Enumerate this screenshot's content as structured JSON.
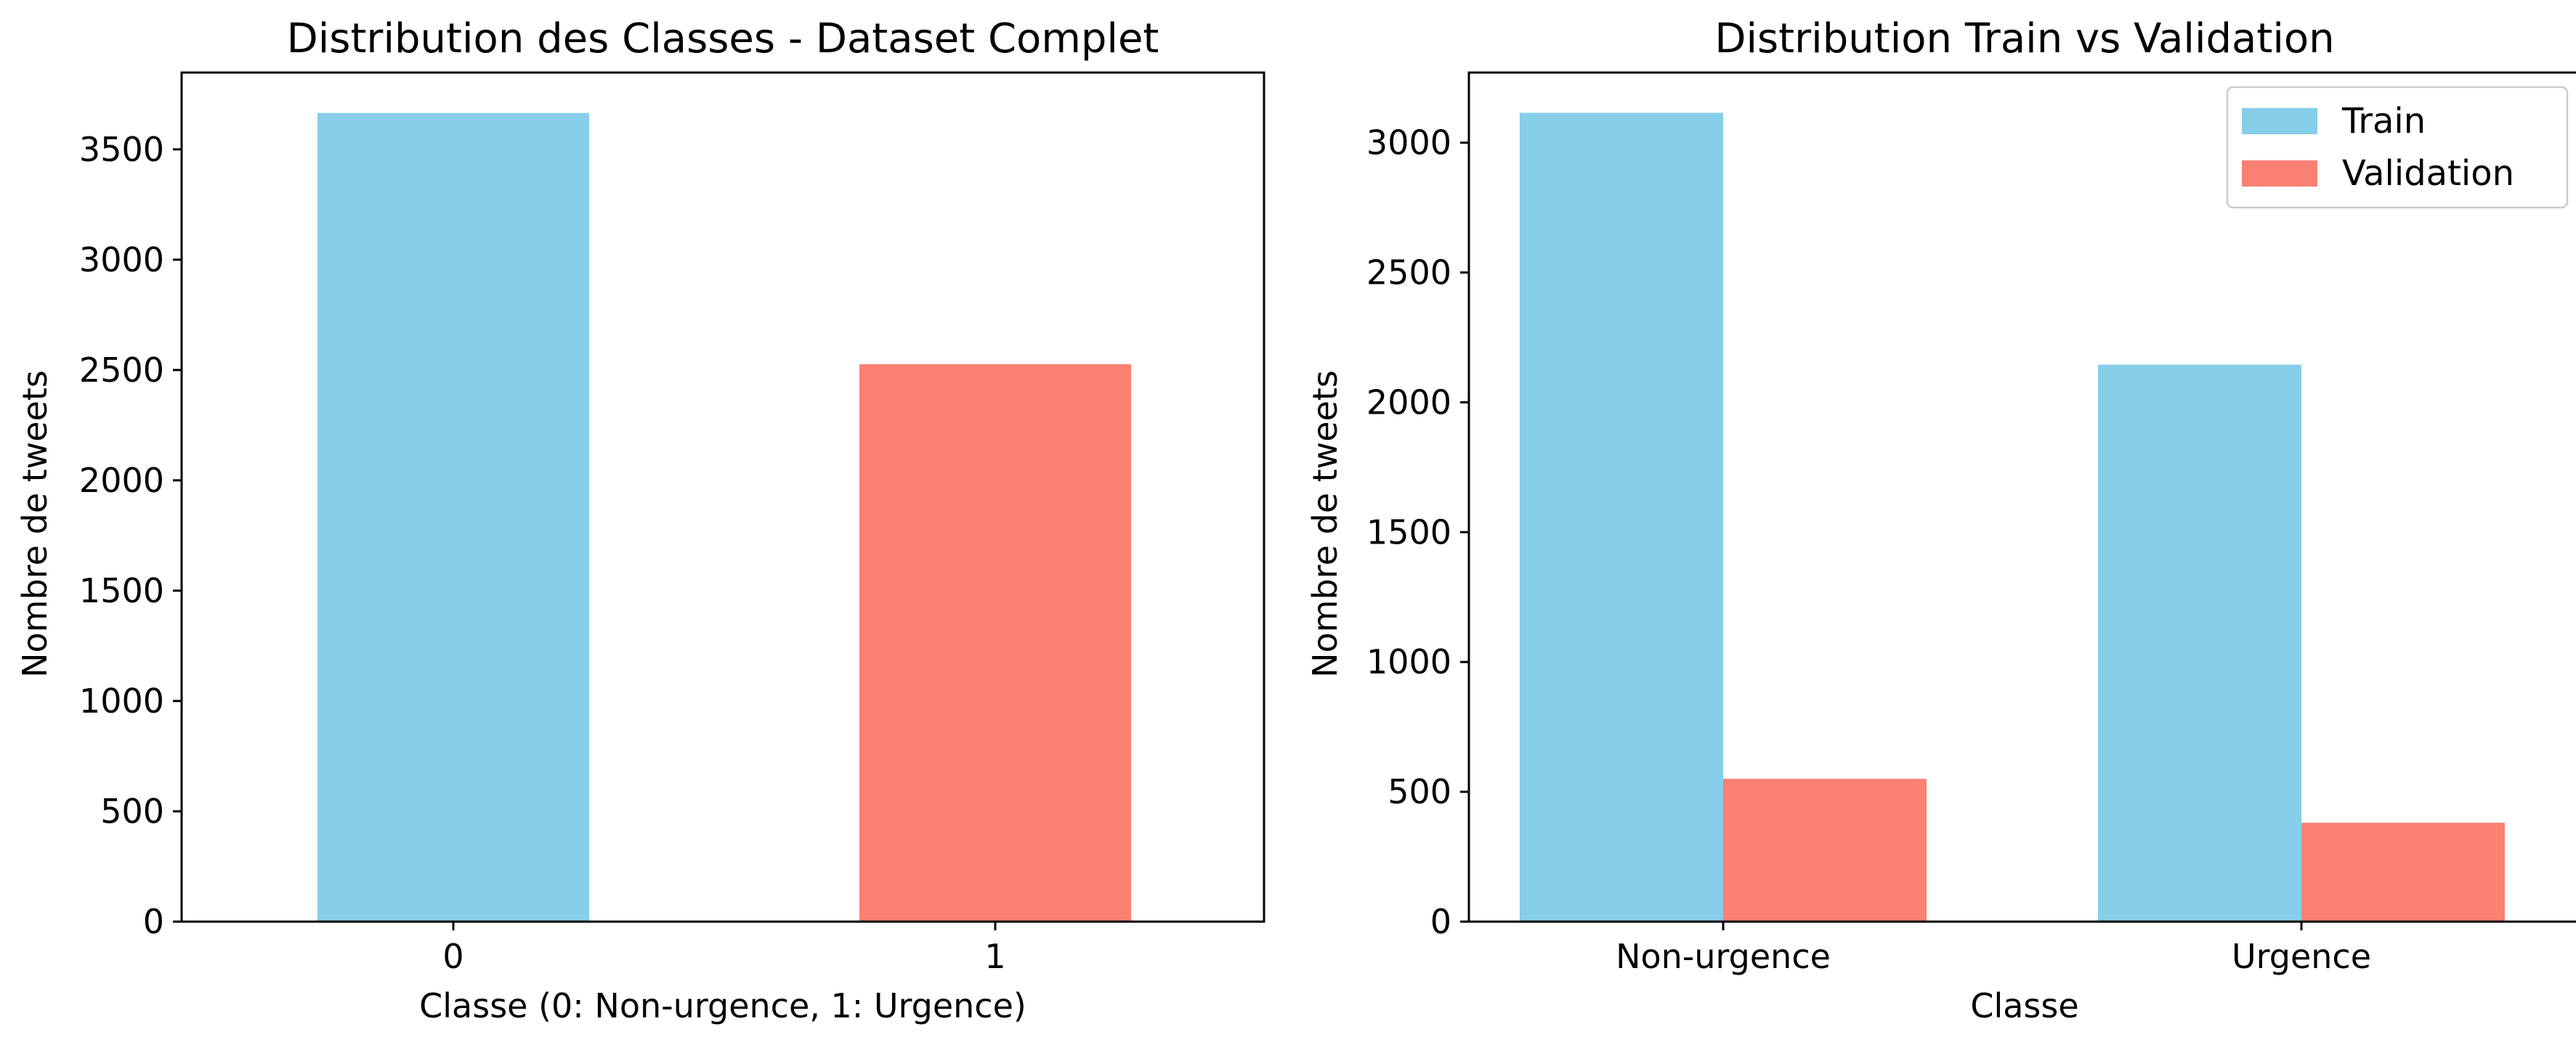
{
  "colors": {
    "train": "#87ceeb",
    "validation": "#fa8072",
    "class_0": "#87ceeb",
    "class_1": "#fa8072"
  },
  "chart_data": [
    {
      "type": "bar",
      "title": "Distribution des Classes - Dataset Complet",
      "xlabel": "Classe (0: Non-urgence, 1: Urgence)",
      "ylabel": "Nombre de tweets",
      "categories": [
        "0",
        "1"
      ],
      "values": [
        3665,
        2526
      ],
      "ylim": [
        0,
        3848
      ],
      "yticks": [
        0,
        500,
        1000,
        1500,
        2000,
        2500,
        3000,
        3500
      ],
      "grid": false
    },
    {
      "type": "bar",
      "title": "Distribution Train vs Validation",
      "xlabel": "Classe",
      "ylabel": "Nombre de tweets",
      "categories": [
        "Non-urgence",
        "Urgence"
      ],
      "series": [
        {
          "name": "Train",
          "values": [
            3115,
            2145
          ]
        },
        {
          "name": "Validation",
          "values": [
            550,
            381
          ]
        }
      ],
      "ylim": [
        0,
        3270
      ],
      "yticks": [
        0,
        500,
        1000,
        1500,
        2000,
        2500,
        3000
      ],
      "legend": "top-right",
      "grid": false
    }
  ]
}
